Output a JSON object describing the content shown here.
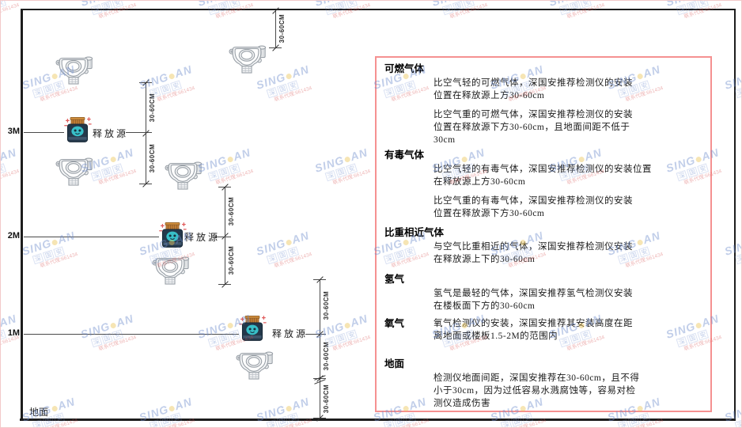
{
  "watermark": {
    "brand_left": "SING",
    "brand_right": "AN",
    "sub_chars": [
      "深",
      "国",
      "安"
    ],
    "red_text": "联系代理:661434",
    "colors": {
      "blue": "#6e8ccd",
      "dot": "#ecc24e",
      "red": "#d75050"
    }
  },
  "diagram": {
    "height_labels": [
      "3M",
      "2M",
      "1M"
    ],
    "ground_label": "地面",
    "release_source_label": "释放源",
    "dimension_label": "30-60CM",
    "frame_color": "#1d1d1d"
  },
  "panel": {
    "border_color": "#f59191",
    "sections": [
      {
        "title": "可燃气体",
        "inline": false,
        "paragraphs": [
          [
            "比空气轻的可燃气体，深国安推荐检测仪的安装",
            "位置在释放源上方30-60cm"
          ],
          [
            "比空气重的可燃气体，深国安推荐检测仪的安装",
            "位置在释放源下方30-60cm，且地面间距不低于",
            "30cm"
          ]
        ]
      },
      {
        "title": "有毒气体",
        "inline": false,
        "paragraphs": [
          [
            "比空气轻的有毒气体，深国安推荐检测仪的安装位置",
            "在释放源上方30-60cm"
          ],
          [
            "比空气重的有毒气体，深国安推荐检测仪的安装",
            "位置在释放源下方30-60cm"
          ]
        ]
      },
      {
        "title": "比重相近气体",
        "inline": false,
        "paragraphs": [
          [
            "与空气比重相近的气体，深国安推荐检测仪安装",
            "在释放源上下的30-60cm"
          ]
        ]
      },
      {
        "title": "氢气",
        "inline": false,
        "paragraphs": [
          [
            "氢气是最轻的气体，深国安推荐氢气检测仪安装",
            "在楼板面下方的30-60cm"
          ]
        ]
      },
      {
        "title": "氧气",
        "inline": true,
        "paragraphs": [
          [
            "氧气检测仪的安装，深国安推荐其安装高度在距",
            "离地面或楼板1.5-2M的范围内"
          ]
        ]
      },
      {
        "title": "地面",
        "inline": false,
        "paragraphs": [
          [
            "检测仪地面间距，深国安推荐在30-60cm，且不得",
            "小于30cm，因为过低容易水溅腐蚀等，容易对检",
            "测仪造成伤害"
          ]
        ]
      }
    ]
  }
}
